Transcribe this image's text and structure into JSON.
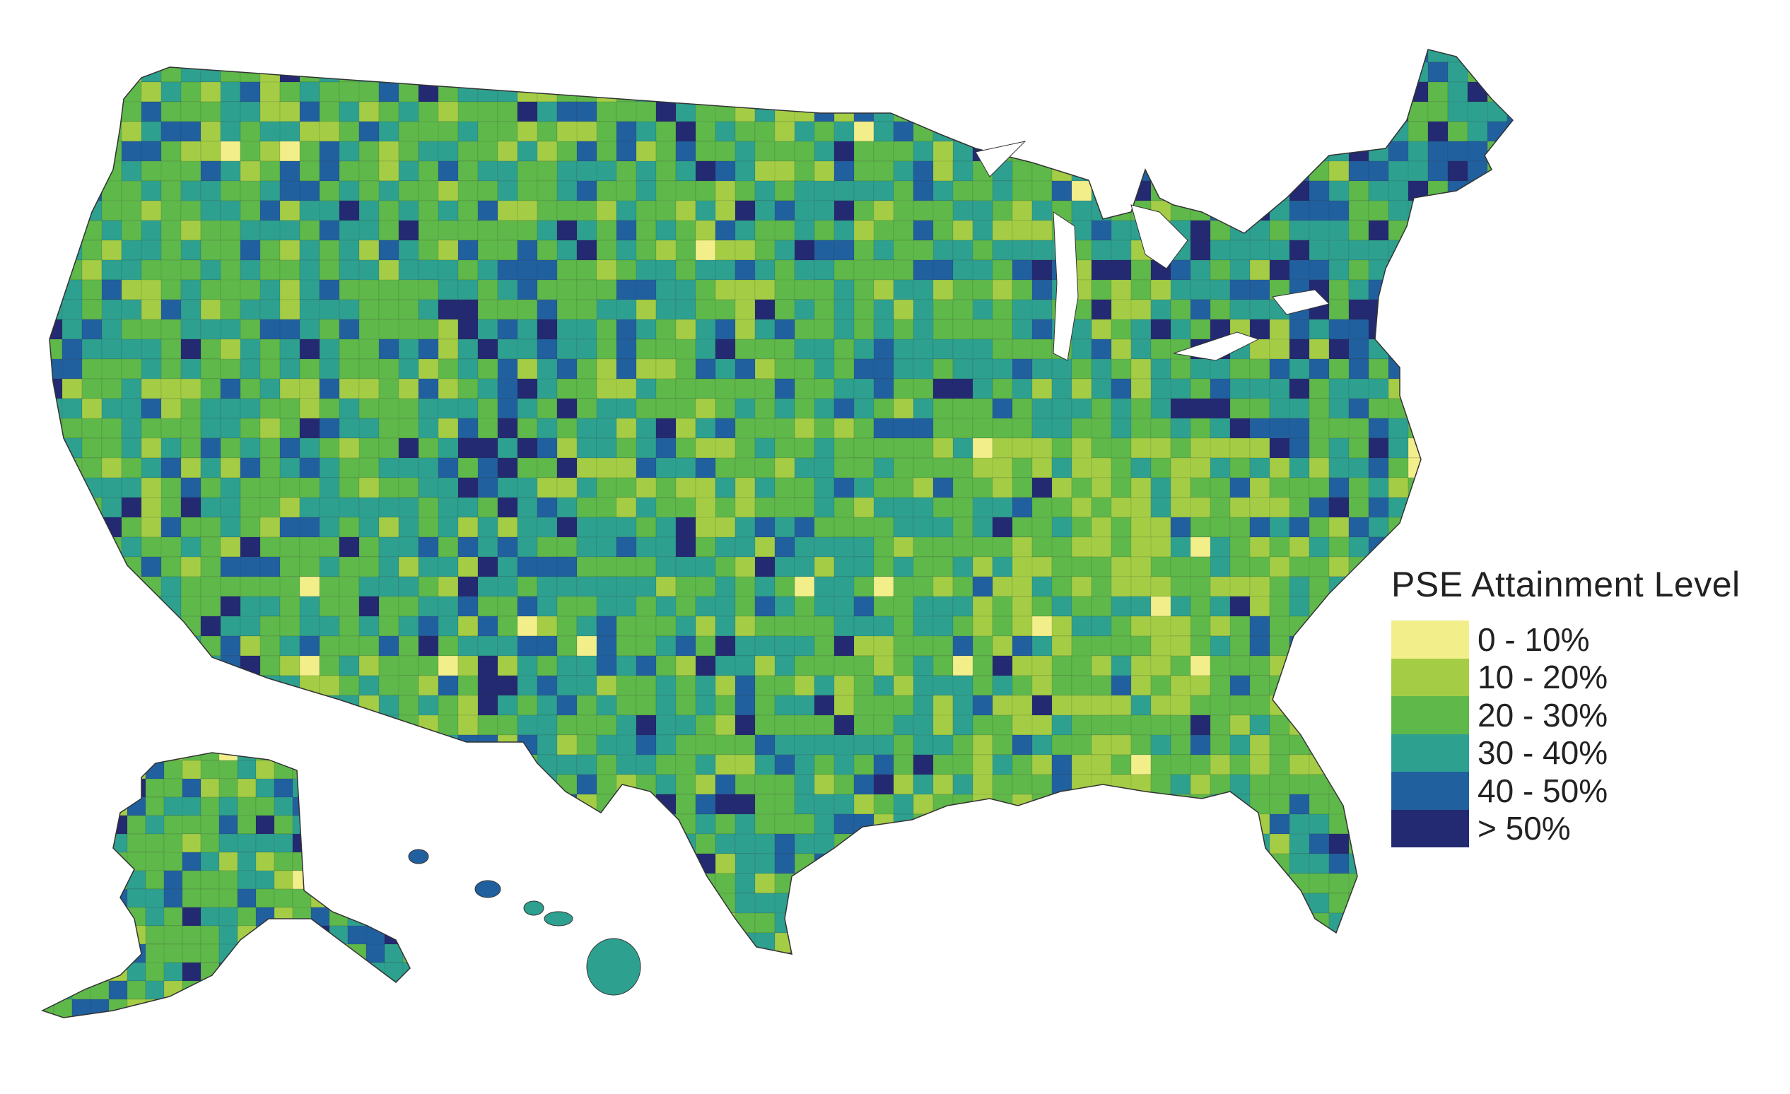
{
  "legend": {
    "title": "PSE Attainment Level",
    "classes": [
      {
        "label": "0 - 10%",
        "color": "#f2ef8a"
      },
      {
        "label": "10 - 20%",
        "color": "#a4cd45"
      },
      {
        "label": "20 - 30%",
        "color": "#5fb84a"
      },
      {
        "label": "30 - 40%",
        "color": "#2ea08f"
      },
      {
        "label": "40 - 50%",
        "color": "#21609e"
      },
      {
        "label": "> 50%",
        "color": "#232a72"
      }
    ]
  },
  "map": {
    "subject": "United States counties",
    "insets": [
      "Alaska",
      "Hawaii"
    ],
    "border_color": "#333333"
  }
}
